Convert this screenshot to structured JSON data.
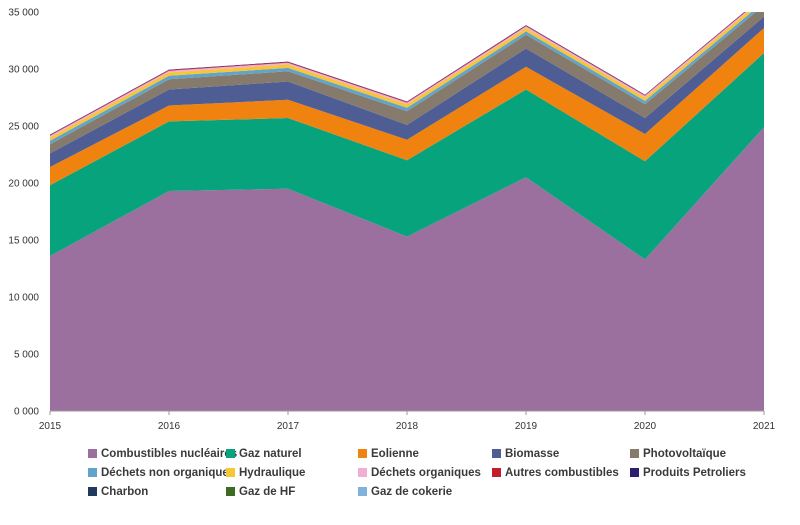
{
  "chart_data": {
    "type": "area",
    "stacked": true,
    "categories": [
      "2015",
      "2016",
      "2017",
      "2018",
      "2019",
      "2020",
      "2021"
    ],
    "ylim": [
      0,
      35000
    ],
    "yticks": [
      0,
      5000,
      10000,
      15000,
      20000,
      25000,
      30000,
      35000
    ],
    "ytick_labels": [
      "0 000",
      "5 000",
      "10 000",
      "15 000",
      "20 000",
      "25 000",
      "30 000",
      "35 000"
    ],
    "grid": false,
    "legend_position": "bottom",
    "series": [
      {
        "name": "Combustibles nucléaires",
        "color": "#9b6f9e",
        "values": [
          13600,
          19300,
          19500,
          15300,
          20500,
          13300,
          24900
        ]
      },
      {
        "name": "Gaz naturel",
        "color": "#07a37c",
        "values": [
          6200,
          6100,
          6200,
          6700,
          7700,
          8600,
          6500
        ]
      },
      {
        "name": "Eolienne",
        "color": "#f0820f",
        "values": [
          1600,
          1400,
          1600,
          1800,
          2000,
          2400,
          2200
        ]
      },
      {
        "name": "Biomasse",
        "color": "#4e5d93",
        "values": [
          1200,
          1400,
          1600,
          1300,
          1600,
          1400,
          1000
        ]
      },
      {
        "name": "Photovoltaïque",
        "color": "#867a6c",
        "values": [
          800,
          900,
          900,
          1200,
          1200,
          1200,
          1000
        ]
      },
      {
        "name": "Déchets non organiques",
        "color": "#62a4c9",
        "values": [
          300,
          300,
          300,
          300,
          300,
          300,
          300
        ]
      },
      {
        "name": "Hydraulique",
        "color": "#f6c636",
        "values": [
          300,
          300,
          300,
          300,
          300,
          300,
          300
        ]
      },
      {
        "name": "Déchets organiques",
        "color": "#f2aed2",
        "values": [
          150,
          150,
          150,
          150,
          150,
          150,
          150
        ]
      },
      {
        "name": "Autres combustibles",
        "color": "#c21d2a",
        "values": [
          60,
          60,
          60,
          60,
          60,
          60,
          60
        ]
      },
      {
        "name": "Produits Petroliers",
        "color": "#2a1f6e",
        "values": [
          40,
          40,
          40,
          40,
          40,
          40,
          40
        ]
      },
      {
        "name": "Charbon",
        "color": "#1f3a5c",
        "values": [
          0,
          0,
          0,
          0,
          0,
          0,
          0
        ]
      },
      {
        "name": "Gaz de HF",
        "color": "#3d6b1f",
        "values": [
          0,
          0,
          0,
          0,
          0,
          0,
          0
        ]
      },
      {
        "name": "Gaz de cokerie",
        "color": "#7fb3dc",
        "values": [
          0,
          0,
          0,
          0,
          0,
          0,
          0
        ]
      }
    ]
  }
}
